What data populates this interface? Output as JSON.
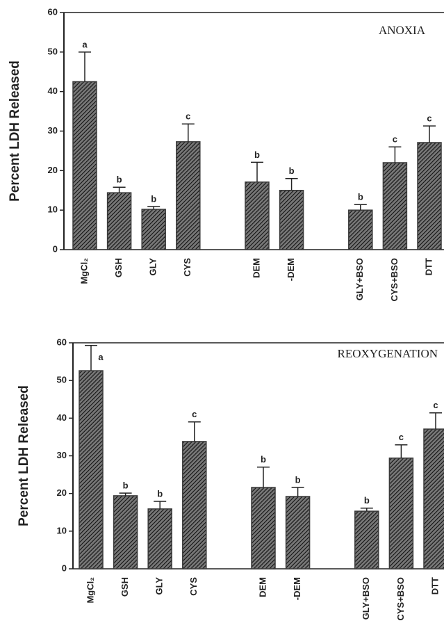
{
  "chart_data": [
    {
      "type": "bar",
      "title": "ANOXIA",
      "ylabel": "Percent  LDH Released",
      "color": "#3a3a3a",
      "categories": [
        "MgCl₂",
        "GSH",
        "GLY",
        "CYS",
        null,
        "DEM",
        "-DEM",
        null,
        "GLY+BSO",
        "CYS+BSO",
        "DTT"
      ],
      "values": [
        42.5,
        14.4,
        10.2,
        27.3,
        null,
        17.1,
        15,
        null,
        10,
        22,
        27.1
      ],
      "errors": [
        7.5,
        1.4,
        0.7,
        4.5,
        null,
        5,
        3,
        null,
        1.4,
        4,
        4.2
      ],
      "annotations": [
        "a",
        "b",
        "b",
        "c",
        null,
        "b",
        "b",
        null,
        "b",
        "c",
        "c"
      ],
      "ylim": [
        0,
        60
      ],
      "yticks": [
        0,
        10,
        20,
        30,
        40,
        50,
        60
      ]
    },
    {
      "type": "bar",
      "title": "REOXYGENATION",
      "ylabel": "Percent  LDH Released",
      "color": "#3a3a3a",
      "categories": [
        "MgCl₂",
        "GSH",
        "GLY",
        "CYS",
        null,
        "DEM",
        "-DEM",
        null,
        "GLY+BSO",
        "CYS+BSO",
        "DTT"
      ],
      "values": [
        52.6,
        19.4,
        15.9,
        33.8,
        null,
        21.6,
        19.2,
        null,
        15.3,
        29.4,
        37.1
      ],
      "errors": [
        6.7,
        0.7,
        2,
        5.2,
        null,
        5.4,
        2.4,
        null,
        0.8,
        3.5,
        4.3
      ],
      "annotations": [
        "a",
        "b",
        "b",
        "c",
        null,
        "b",
        "b",
        null,
        "b",
        "c",
        "c"
      ],
      "ylim": [
        0,
        60
      ],
      "yticks": [
        0,
        10,
        20,
        30,
        40,
        50,
        60
      ]
    }
  ]
}
